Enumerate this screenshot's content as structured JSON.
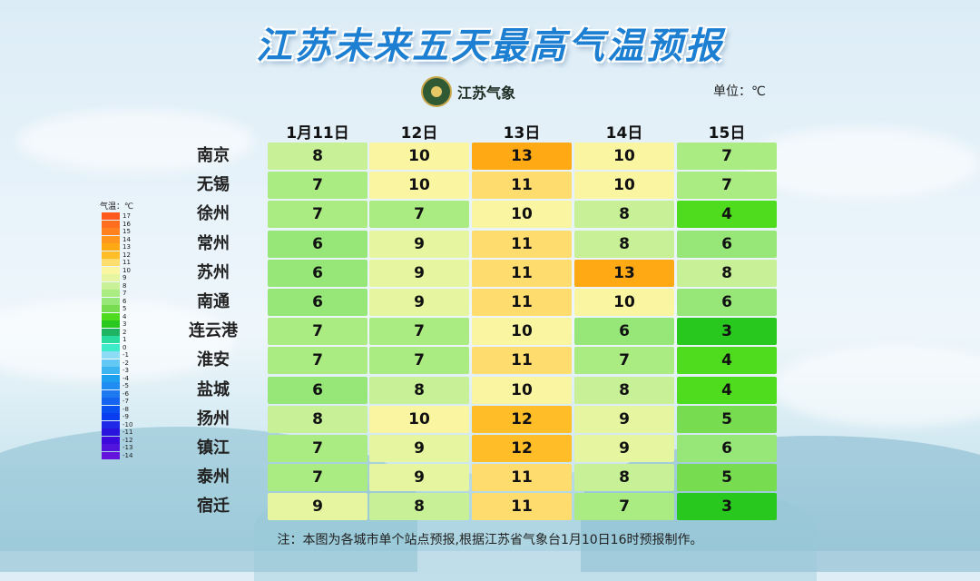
{
  "title": "江苏未来五天最高气温预报",
  "logo_text": "江苏气象",
  "unit_label": "单位：℃",
  "legend": {
    "title": "气温：℃",
    "levels": [
      {
        "label": "17",
        "color": "#ff5a1e"
      },
      {
        "label": "16",
        "color": "#ff6e1e"
      },
      {
        "label": "15",
        "color": "#ff821e"
      },
      {
        "label": "14",
        "color": "#ff961e"
      },
      {
        "label": "13",
        "color": "#ffaa14"
      },
      {
        "label": "12",
        "color": "#ffbe28"
      },
      {
        "label": "11",
        "color": "#ffdc6e"
      },
      {
        "label": "10",
        "color": "#faf5a0"
      },
      {
        "label": "9",
        "color": "#e6f5a0"
      },
      {
        "label": "8",
        "color": "#c8f096"
      },
      {
        "label": "7",
        "color": "#aaeb82"
      },
      {
        "label": "6",
        "color": "#96e678"
      },
      {
        "label": "5",
        "color": "#78dc50"
      },
      {
        "label": "4",
        "color": "#50dc1e"
      },
      {
        "label": "3",
        "color": "#28c81e"
      },
      {
        "label": "2",
        "color": "#1eb464"
      },
      {
        "label": "1",
        "color": "#28dca0"
      },
      {
        "label": "0",
        "color": "#3cebc8"
      },
      {
        "label": "-1",
        "color": "#8cdcf5"
      },
      {
        "label": "-2",
        "color": "#64c8f5"
      },
      {
        "label": "-3",
        "color": "#3cb4f0"
      },
      {
        "label": "-4",
        "color": "#1ea0f0"
      },
      {
        "label": "-5",
        "color": "#1e8cf0"
      },
      {
        "label": "-6",
        "color": "#1e78f0"
      },
      {
        "label": "-7",
        "color": "#1464f0"
      },
      {
        "label": "-8",
        "color": "#0a50f0"
      },
      {
        "label": "-9",
        "color": "#0a3cf0"
      },
      {
        "label": "-10",
        "color": "#1e28e6"
      },
      {
        "label": "-11",
        "color": "#2814dc"
      },
      {
        "label": "-12",
        "color": "#3c0adc"
      },
      {
        "label": "-13",
        "color": "#5014dc"
      },
      {
        "label": "-14",
        "color": "#6414dc"
      }
    ]
  },
  "note": "注：本图为各城市单个站点预报,根据江苏省气象台1月10日16时预报制作。",
  "chart_data": {
    "type": "table",
    "columns": [
      "1月11日",
      "12日",
      "13日",
      "14日",
      "15日"
    ],
    "rows": [
      {
        "city": "南京",
        "values": [
          8,
          10,
          13,
          10,
          7
        ]
      },
      {
        "city": "无锡",
        "values": [
          7,
          10,
          11,
          10,
          7
        ]
      },
      {
        "city": "徐州",
        "values": [
          7,
          7,
          10,
          8,
          4
        ]
      },
      {
        "city": "常州",
        "values": [
          6,
          9,
          11,
          8,
          6
        ]
      },
      {
        "city": "苏州",
        "values": [
          6,
          9,
          11,
          13,
          8
        ]
      },
      {
        "city": "南通",
        "values": [
          6,
          9,
          11,
          10,
          6
        ]
      },
      {
        "city": "连云港",
        "values": [
          7,
          7,
          10,
          6,
          3
        ]
      },
      {
        "city": "淮安",
        "values": [
          7,
          7,
          11,
          7,
          4
        ]
      },
      {
        "city": "盐城",
        "values": [
          6,
          8,
          10,
          8,
          4
        ]
      },
      {
        "city": "扬州",
        "values": [
          8,
          10,
          12,
          9,
          5
        ]
      },
      {
        "city": "镇江",
        "values": [
          7,
          9,
          12,
          9,
          6
        ]
      },
      {
        "city": "泰州",
        "values": [
          7,
          9,
          11,
          8,
          5
        ]
      },
      {
        "city": "宿迁",
        "values": [
          9,
          8,
          11,
          7,
          3
        ]
      }
    ]
  }
}
